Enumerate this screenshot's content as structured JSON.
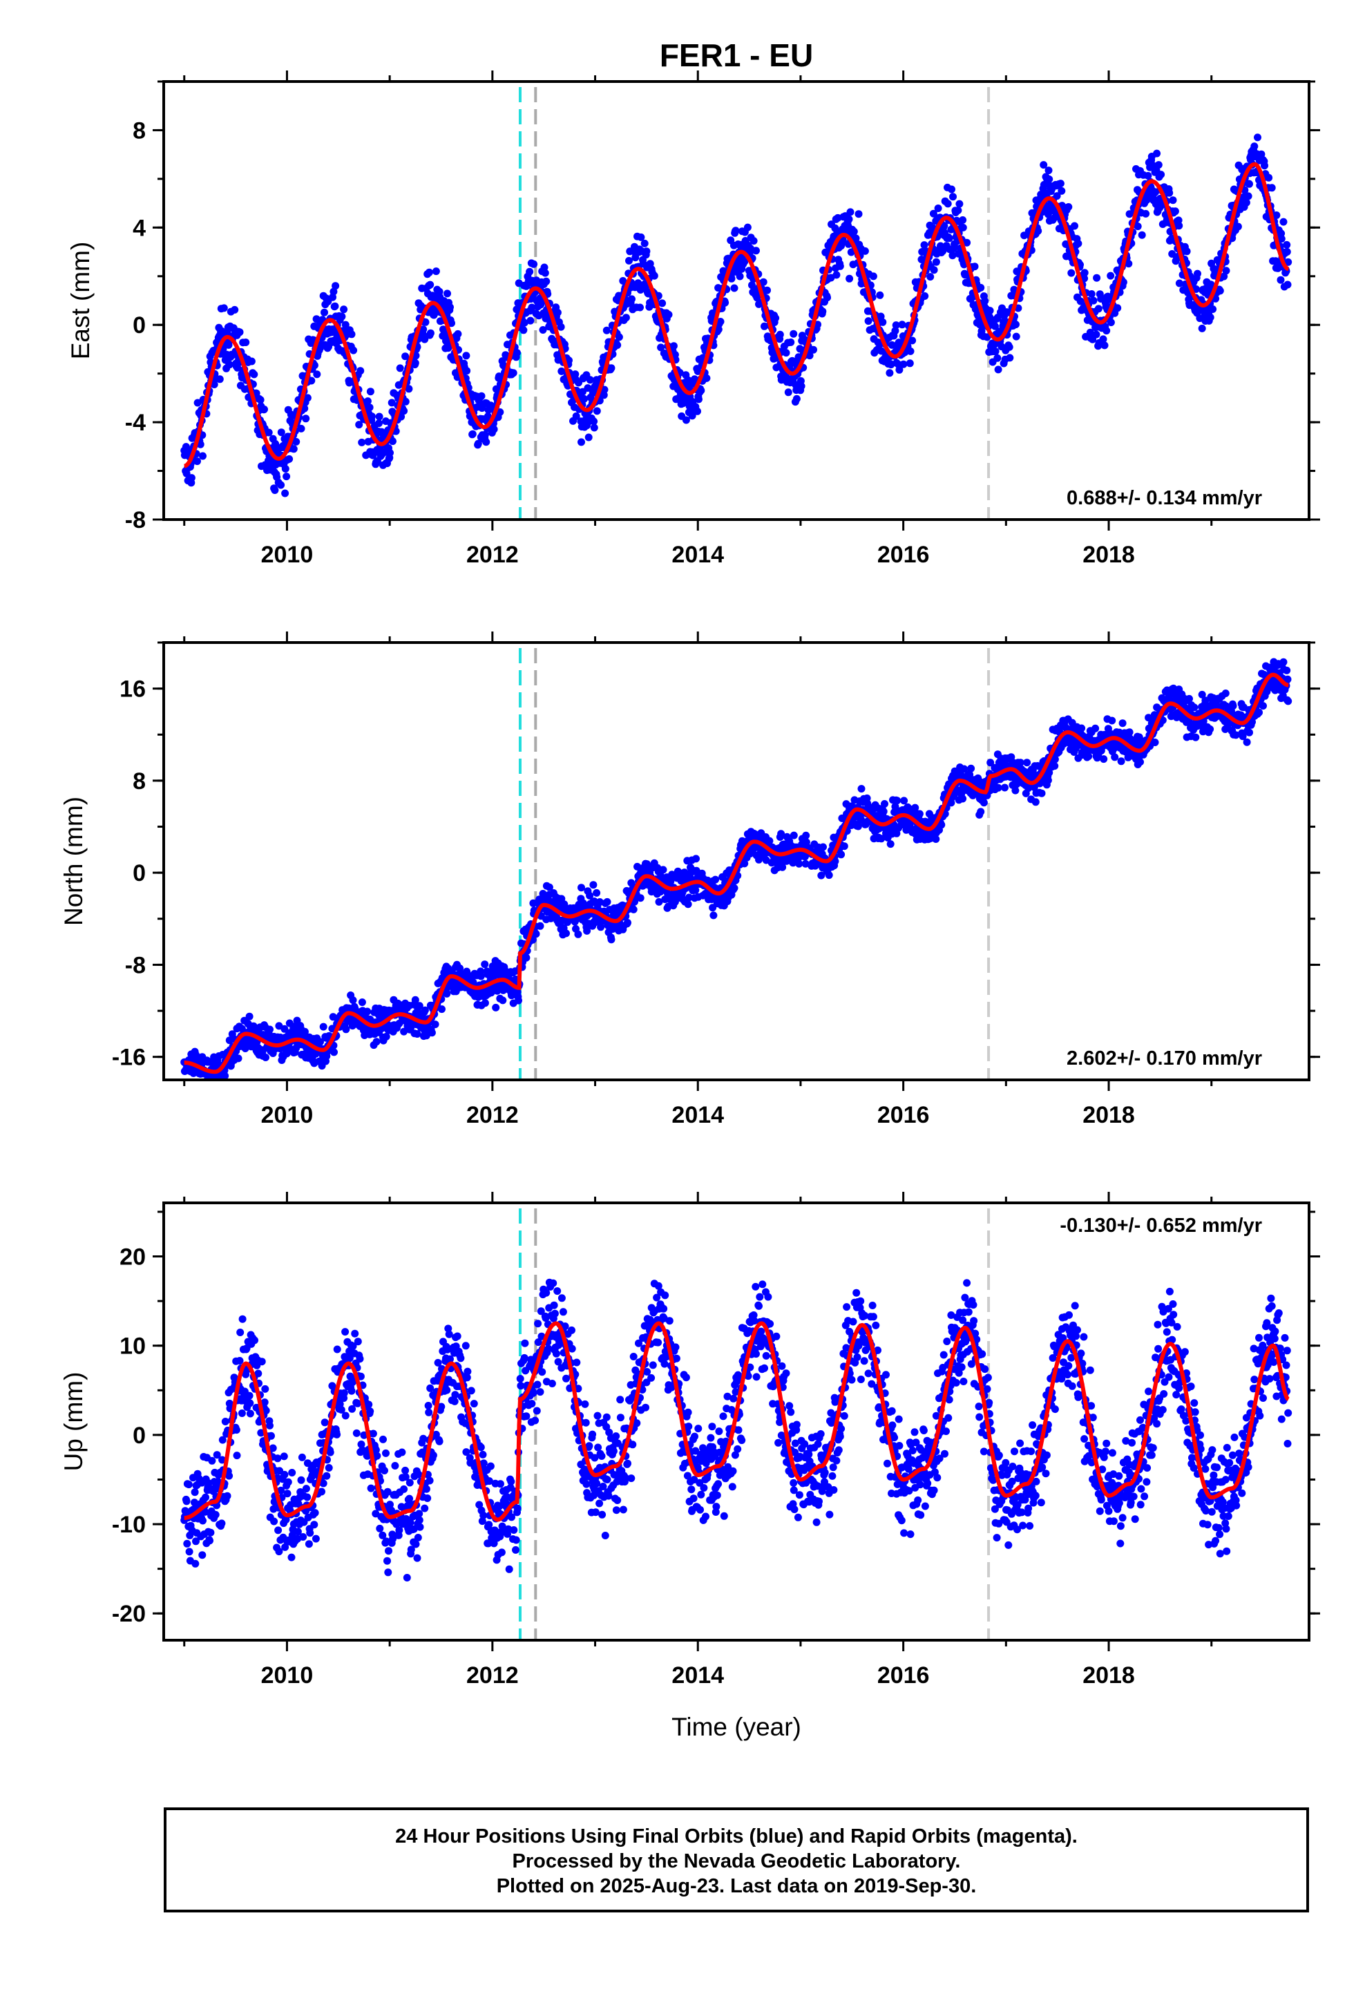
{
  "chart_data": {
    "type": "scatter",
    "title": "FER1 - EU",
    "xlabel": "Time (year)",
    "xlim": [
      2008.8,
      2019.95
    ],
    "x_ticks": [
      2010,
      2012,
      2014,
      2016,
      2018
    ],
    "event_lines": [
      {
        "x": 2012.27,
        "color": "#22dddd",
        "style": "dashed"
      },
      {
        "x": 2012.42,
        "color": "#aaaaaa",
        "style": "dashed"
      },
      {
        "x": 2016.83,
        "color": "#cccccc",
        "style": "dashed"
      }
    ],
    "data_range": [
      2009.0,
      2019.75
    ],
    "colors": {
      "points": "#0000ff",
      "model": "#ff0000"
    },
    "panels": [
      {
        "id": "east",
        "ylabel": "East (mm)",
        "ylim": [
          -8,
          10
        ],
        "y_ticks": [
          -8,
          -4,
          0,
          4,
          8
        ],
        "rate_text": "0.688+/- 0.134 mm/yr",
        "rate_position": "bottom-right",
        "model_curve": [
          [
            2009.0,
            -5.8
          ],
          [
            2009.42,
            -0.5
          ],
          [
            2009.92,
            -5.5
          ],
          [
            2010.42,
            0.2
          ],
          [
            2010.92,
            -4.9
          ],
          [
            2011.42,
            0.9
          ],
          [
            2011.92,
            -4.2
          ],
          [
            2012.42,
            1.5
          ],
          [
            2012.92,
            -3.5
          ],
          [
            2013.42,
            2.3
          ],
          [
            2013.92,
            -2.8
          ],
          [
            2014.42,
            3.0
          ],
          [
            2014.92,
            -2.0
          ],
          [
            2015.42,
            3.7
          ],
          [
            2015.92,
            -1.3
          ],
          [
            2016.42,
            4.4
          ],
          [
            2016.92,
            -0.6
          ],
          [
            2017.42,
            5.2
          ],
          [
            2017.92,
            0.1
          ],
          [
            2018.42,
            5.9
          ],
          [
            2018.92,
            0.8
          ],
          [
            2019.42,
            6.6
          ],
          [
            2019.75,
            2.3
          ]
        ],
        "noise": 0.9
      },
      {
        "id": "north",
        "ylabel": "North (mm)",
        "ylim": [
          -18,
          20
        ],
        "y_ticks": [
          -16,
          -8,
          0,
          8,
          16
        ],
        "rate_text": "2.602+/- 0.170 mm/yr",
        "rate_position": "bottom-right",
        "model_curve": [
          [
            2009.0,
            -16.5
          ],
          [
            2009.3,
            -17.3
          ],
          [
            2009.6,
            -14.0
          ],
          [
            2009.9,
            -15.0
          ],
          [
            2010.1,
            -14.5
          ],
          [
            2010.35,
            -15.4
          ],
          [
            2010.6,
            -12.2
          ],
          [
            2010.85,
            -13.3
          ],
          [
            2011.1,
            -12.3
          ],
          [
            2011.35,
            -13.0
          ],
          [
            2011.6,
            -9.0
          ],
          [
            2011.85,
            -10.0
          ],
          [
            2012.1,
            -9.3
          ],
          [
            2012.26,
            -10.0
          ],
          [
            2012.27,
            -7.0
          ],
          [
            2012.5,
            -2.8
          ],
          [
            2012.75,
            -3.8
          ],
          [
            2012.95,
            -3.3
          ],
          [
            2013.2,
            -4.2
          ],
          [
            2013.5,
            -0.3
          ],
          [
            2013.75,
            -1.4
          ],
          [
            2014.0,
            -0.8
          ],
          [
            2014.2,
            -1.8
          ],
          [
            2014.55,
            2.7
          ],
          [
            2014.8,
            1.6
          ],
          [
            2015.0,
            2.0
          ],
          [
            2015.25,
            1.0
          ],
          [
            2015.55,
            5.5
          ],
          [
            2015.8,
            4.2
          ],
          [
            2016.0,
            5.0
          ],
          [
            2016.25,
            3.8
          ],
          [
            2016.55,
            8.0
          ],
          [
            2016.8,
            7.0
          ],
          [
            2016.85,
            8.4
          ],
          [
            2017.05,
            9.0
          ],
          [
            2017.25,
            7.8
          ],
          [
            2017.6,
            12.2
          ],
          [
            2017.85,
            11.0
          ],
          [
            2018.05,
            11.7
          ],
          [
            2018.3,
            10.6
          ],
          [
            2018.6,
            14.7
          ],
          [
            2018.85,
            13.4
          ],
          [
            2019.05,
            14.1
          ],
          [
            2019.3,
            13.0
          ],
          [
            2019.6,
            17.2
          ],
          [
            2019.75,
            16.3
          ]
        ],
        "noise": 1.1
      },
      {
        "id": "up",
        "ylabel": "Up (mm)",
        "ylim": [
          -23,
          26
        ],
        "y_ticks": [
          -20,
          -10,
          0,
          10,
          20
        ],
        "rate_text": "-0.130+/- 0.652 mm/yr",
        "rate_position": "top-right",
        "model_curve": [
          [
            2009.0,
            -9.3
          ],
          [
            2009.3,
            -7.5
          ],
          [
            2009.6,
            8.0
          ],
          [
            2010.0,
            -9.0
          ],
          [
            2010.2,
            -8.0
          ],
          [
            2010.6,
            8.0
          ],
          [
            2011.0,
            -9.2
          ],
          [
            2011.2,
            -8.5
          ],
          [
            2011.6,
            8.0
          ],
          [
            2012.05,
            -9.5
          ],
          [
            2012.24,
            -7.5
          ],
          [
            2012.27,
            4.0
          ],
          [
            2012.62,
            12.5
          ],
          [
            2013.0,
            -4.5
          ],
          [
            2013.2,
            -3.5
          ],
          [
            2013.62,
            12.5
          ],
          [
            2014.0,
            -4.5
          ],
          [
            2014.2,
            -3.5
          ],
          [
            2014.62,
            12.5
          ],
          [
            2015.0,
            -5.0
          ],
          [
            2015.2,
            -3.5
          ],
          [
            2015.6,
            12.3
          ],
          [
            2016.0,
            -5.0
          ],
          [
            2016.2,
            -3.8
          ],
          [
            2016.6,
            12.0
          ],
          [
            2017.0,
            -6.8
          ],
          [
            2017.2,
            -5.5
          ],
          [
            2017.6,
            10.5
          ],
          [
            2018.0,
            -6.8
          ],
          [
            2018.2,
            -5.5
          ],
          [
            2018.6,
            10.2
          ],
          [
            2019.0,
            -7.0
          ],
          [
            2019.2,
            -6.0
          ],
          [
            2019.6,
            10.0
          ],
          [
            2019.75,
            4.0
          ]
        ],
        "noise": 4.0
      }
    ]
  },
  "footer": {
    "line1": "24 Hour Positions Using Final Orbits (blue) and Rapid Orbits (magenta).",
    "line2": "Processed by the Nevada Geodetic Laboratory.",
    "line3": "Plotted on 2025-Aug-23. Last data on 2019-Sep-30."
  }
}
